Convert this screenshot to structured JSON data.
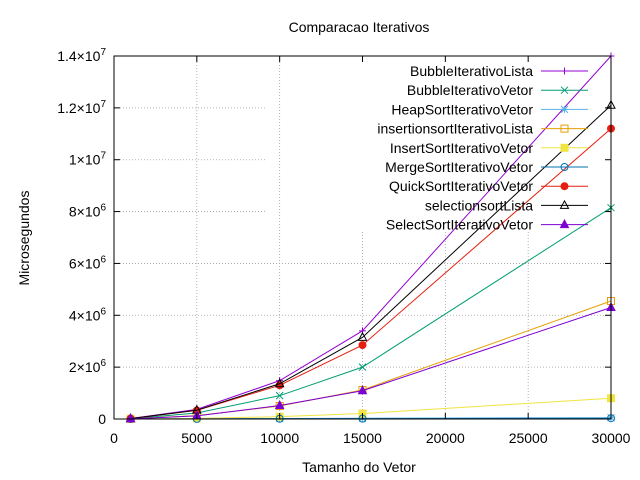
{
  "chart_data": {
    "type": "line",
    "title": "Comparacao Iterativos",
    "xlabel": "Tamanho do Vetor",
    "ylabel": "Microsegundos",
    "xlim": [
      0,
      30000
    ],
    "ylim": [
      0,
      14000000
    ],
    "grid": true,
    "legend_position": "top-right",
    "x_ticks": [
      {
        "value": 0,
        "label": "0"
      },
      {
        "value": 5000,
        "label": "5000"
      },
      {
        "value": 10000,
        "label": "10000"
      },
      {
        "value": 15000,
        "label": "15000"
      },
      {
        "value": 20000,
        "label": "20000"
      },
      {
        "value": 25000,
        "label": "25000"
      },
      {
        "value": 30000,
        "label": "30000"
      }
    ],
    "y_ticks": [
      {
        "value": 0,
        "mantissa": "0",
        "exp": ""
      },
      {
        "value": 2000000,
        "mantissa": "2×10",
        "exp": "6"
      },
      {
        "value": 4000000,
        "mantissa": "4×10",
        "exp": "6"
      },
      {
        "value": 6000000,
        "mantissa": "6×10",
        "exp": "6"
      },
      {
        "value": 8000000,
        "mantissa": "8×10",
        "exp": "6"
      },
      {
        "value": 10000000,
        "mantissa": "1×10",
        "exp": "7"
      },
      {
        "value": 12000000,
        "mantissa": "1.2×10",
        "exp": "7"
      },
      {
        "value": 14000000,
        "mantissa": "1.4×10",
        "exp": "7"
      }
    ],
    "x": [
      1000,
      5000,
      10000,
      15000,
      30000
    ],
    "series": [
      {
        "name": "BubbleIterativoLista",
        "color": "#9400d3",
        "marker": "plus",
        "values": [
          20000,
          370000,
          1480000,
          3400000,
          14000000
        ]
      },
      {
        "name": "BubbleIterativoVetor",
        "color": "#009e73",
        "marker": "cross",
        "values": [
          10000,
          230000,
          900000,
          2000000,
          8150000
        ]
      },
      {
        "name": "HeapSortIterativoVetor",
        "color": "#56b4e9",
        "marker": "star",
        "values": [
          2000,
          10000,
          20000,
          30000,
          50000
        ]
      },
      {
        "name": "insertionsortIterativoLista",
        "color": "#e69f00",
        "marker": "square",
        "values": [
          5000,
          130000,
          500000,
          1120000,
          4550000
        ]
      },
      {
        "name": "InsertSortIterativoVetor",
        "color": "#f0e442",
        "marker": "filled-square",
        "values": [
          2000,
          25000,
          90000,
          210000,
          800000
        ]
      },
      {
        "name": "MergeSortIterativoVetor",
        "color": "#0072b2",
        "marker": "circle",
        "values": [
          2000,
          5000,
          10000,
          15000,
          30000
        ]
      },
      {
        "name": "QuickSortIterativoVetor",
        "color": "#e51e10",
        "marker": "filled-circle",
        "values": [
          15000,
          330000,
          1300000,
          2850000,
          11200000
        ]
      },
      {
        "name": "selectionsortLista",
        "color": "#000000",
        "marker": "triangle",
        "values": [
          15000,
          340000,
          1360000,
          3150000,
          12100000
        ]
      },
      {
        "name": "SelectSortIterativoVetor",
        "color": "#7b00d4",
        "marker": "filled-triangle",
        "values": [
          5000,
          120000,
          520000,
          1090000,
          4300000
        ]
      }
    ]
  }
}
